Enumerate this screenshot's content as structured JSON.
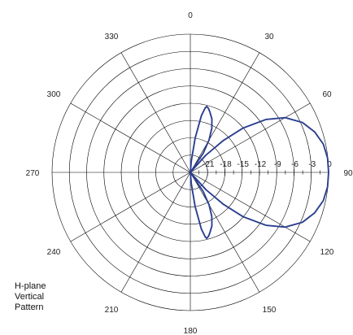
{
  "caption": {
    "line1": "H-plane",
    "line2": "Vertical",
    "line3": "Pattern"
  },
  "colors": {
    "pattern": "#2b3f8f",
    "grid": "#000000",
    "text": "#222222"
  },
  "chart_data": {
    "type": "polar",
    "angle_labels": [
      "0",
      "30",
      "60",
      "90",
      "120",
      "150",
      "180",
      "210",
      "240",
      "270",
      "300",
      "330"
    ],
    "angle_direction": "clockwise",
    "zero_angle": "top",
    "radial_ticks_db": [
      "-21",
      "-18",
      "-15",
      "-12",
      "-9",
      "-6",
      "-3",
      "0"
    ],
    "radial_range_db": [
      -24,
      0
    ],
    "grid": true,
    "series": [
      {
        "points": [
          [
            0,
            -24
          ],
          [
            5,
            -22
          ],
          [
            8,
            -18
          ],
          [
            11,
            -14
          ],
          [
            13,
            -12.5
          ],
          [
            14,
            -12.2
          ],
          [
            16,
            -12.5
          ],
          [
            18,
            -13
          ],
          [
            22,
            -14
          ],
          [
            26,
            -15.5
          ],
          [
            30,
            -17.5
          ],
          [
            34,
            -20
          ],
          [
            38,
            -24
          ],
          [
            42,
            -20
          ],
          [
            46,
            -16
          ],
          [
            50,
            -12
          ],
          [
            55,
            -8
          ],
          [
            60,
            -5
          ],
          [
            66,
            -2.7
          ],
          [
            72,
            -1.3
          ],
          [
            78,
            -0.4
          ],
          [
            84,
            -0.05
          ],
          [
            90,
            0
          ],
          [
            96,
            -0.05
          ],
          [
            102,
            -0.4
          ],
          [
            108,
            -1.3
          ],
          [
            114,
            -2.7
          ],
          [
            120,
            -5
          ],
          [
            125,
            -8
          ],
          [
            130,
            -12
          ],
          [
            134,
            -16
          ],
          [
            138,
            -20
          ],
          [
            142,
            -24
          ],
          [
            146,
            -20
          ],
          [
            150,
            -17.5
          ],
          [
            154,
            -15.5
          ],
          [
            158,
            -14
          ],
          [
            162,
            -13
          ],
          [
            164,
            -12.5
          ],
          [
            166,
            -12.2
          ],
          [
            167,
            -12.5
          ],
          [
            169,
            -14
          ],
          [
            172,
            -18
          ],
          [
            175,
            -22
          ],
          [
            180,
            -24
          ]
        ]
      }
    ]
  }
}
